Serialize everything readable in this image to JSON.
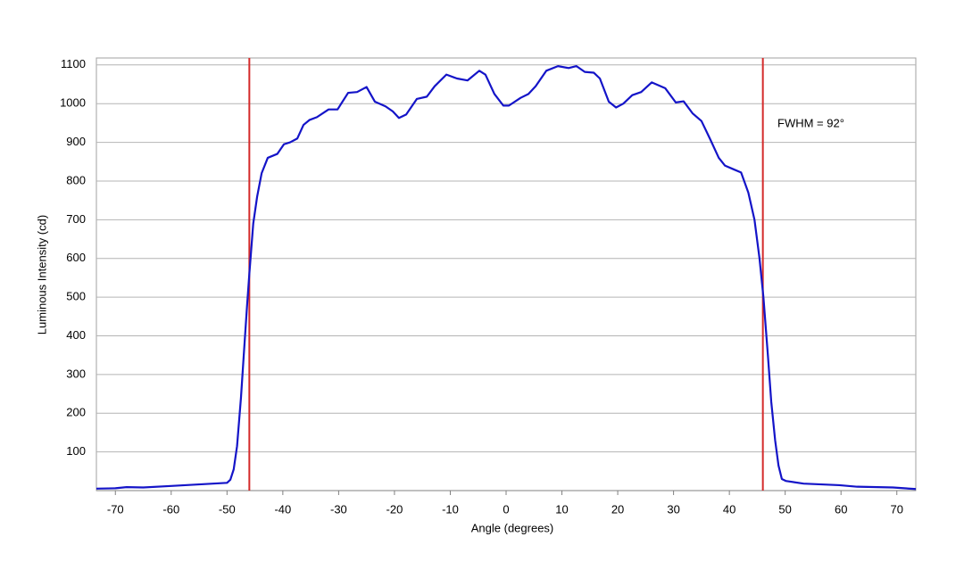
{
  "chart_data": {
    "type": "line",
    "xlabel": "Angle (degrees)",
    "ylabel": "Luminous Intensity (cd)",
    "annotation": "FWHM = 92°",
    "x": [
      -73.4,
      -70,
      -68,
      -65,
      -60,
      -55,
      -50,
      -49.4,
      -48.8,
      -48.2,
      -47.5,
      -47,
      -46.4,
      -46,
      -45.3,
      -44.6,
      -43.8,
      -42.7,
      -41,
      -39.8,
      -38.7,
      -37.4,
      -36.3,
      -35.2,
      -33.9,
      -31.8,
      -30.2,
      -28.3,
      -26.7,
      -25,
      -23.5,
      -21.6,
      -20.3,
      -19.2,
      -17.9,
      -16,
      -14.2,
      -12.8,
      -10.7,
      -8.8,
      -6.9,
      -4.8,
      -3.7,
      -2.1,
      -0.5,
      0.5,
      2.6,
      4,
      5.3,
      7.2,
      9.3,
      11.2,
      12.6,
      14.1,
      15.7,
      16.8,
      18.4,
      19.7,
      21,
      22.6,
      24.2,
      26.1,
      28.5,
      30.4,
      31.8,
      33.4,
      35,
      36.5,
      38.1,
      39.2,
      40.8,
      42.1,
      43.4,
      44.5,
      45.4,
      46.1,
      46.9,
      47.5,
      48.2,
      48.8,
      49.4,
      50.1,
      53.3,
      59.7,
      62.9,
      69.3,
      73.4
    ],
    "values": [
      5,
      6,
      9,
      8,
      12,
      16,
      20,
      28,
      55,
      115,
      240,
      350,
      480,
      560,
      690,
      760,
      820,
      860,
      870,
      895,
      900,
      910,
      945,
      958,
      965,
      985,
      985,
      1028,
      1030,
      1043,
      1005,
      993,
      980,
      963,
      972,
      1012,
      1018,
      1045,
      1075,
      1065,
      1060,
      1085,
      1075,
      1025,
      995,
      995,
      1015,
      1025,
      1045,
      1085,
      1097,
      1092,
      1097,
      1082,
      1080,
      1065,
      1005,
      990,
      1000,
      1022,
      1030,
      1055,
      1040,
      1003,
      1006,
      975,
      955,
      910,
      860,
      840,
      830,
      822,
      770,
      700,
      600,
      500,
      350,
      230,
      130,
      65,
      30,
      25,
      18,
      14,
      10,
      8,
      4
    ],
    "color": "#1414c8",
    "vlines": [
      -46,
      46
    ],
    "vline_color": "#d42a2a",
    "xlim": [
      -73.4,
      73.4
    ],
    "xticks": [
      -70,
      -60,
      -50,
      -40,
      -30,
      -20,
      -10,
      0,
      10,
      20,
      30,
      40,
      50,
      60,
      70
    ],
    "ylim": [
      0,
      1118
    ],
    "yticks": [
      100,
      200,
      300,
      400,
      500,
      600,
      700,
      800,
      900,
      1000,
      1100
    ],
    "grid": true
  }
}
